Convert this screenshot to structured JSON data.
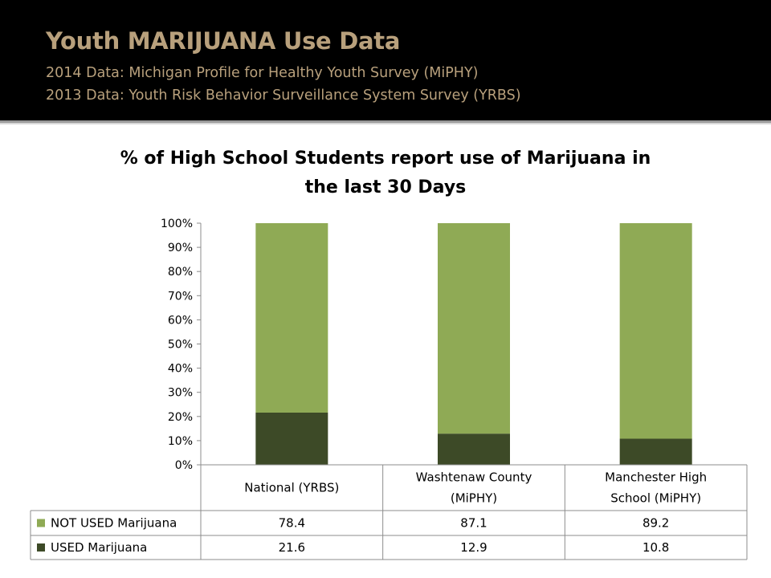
{
  "header": {
    "title": "Youth MARIJUANA Use Data",
    "subtitle_lines": [
      "2014 Data: Michigan Profile for Healthy Youth Survey (MiPHY)",
      "2013 Data: Youth Risk Behavior Surveillance System Survey (YRBS)"
    ]
  },
  "chart_data": {
    "type": "bar",
    "stacked": true,
    "title_lines": [
      "% of High School Students report use of Marijuana in",
      "the last 30 Days"
    ],
    "category_lines": [
      [
        "National (YRBS)"
      ],
      [
        "Washtenaw County",
        "(MiPHY)"
      ],
      [
        "Manchester High",
        "School (MiPHY)"
      ]
    ],
    "y_ticks": [
      "0%",
      "10%",
      "20%",
      "30%",
      "40%",
      "50%",
      "60%",
      "70%",
      "80%",
      "90%",
      "100%"
    ],
    "ylim": [
      0,
      100
    ],
    "series": [
      {
        "name": "NOT USED Marijuana",
        "color": "#8faa55",
        "values": [
          78.4,
          87.1,
          89.2
        ],
        "labels": [
          "78.4",
          "87.1",
          "89.2"
        ]
      },
      {
        "name": "USED Marijuana",
        "color": "#3d4a27",
        "values": [
          21.6,
          12.9,
          10.8
        ],
        "labels": [
          "21.6",
          "12.9",
          "10.8"
        ]
      }
    ],
    "legend": "data-table"
  }
}
